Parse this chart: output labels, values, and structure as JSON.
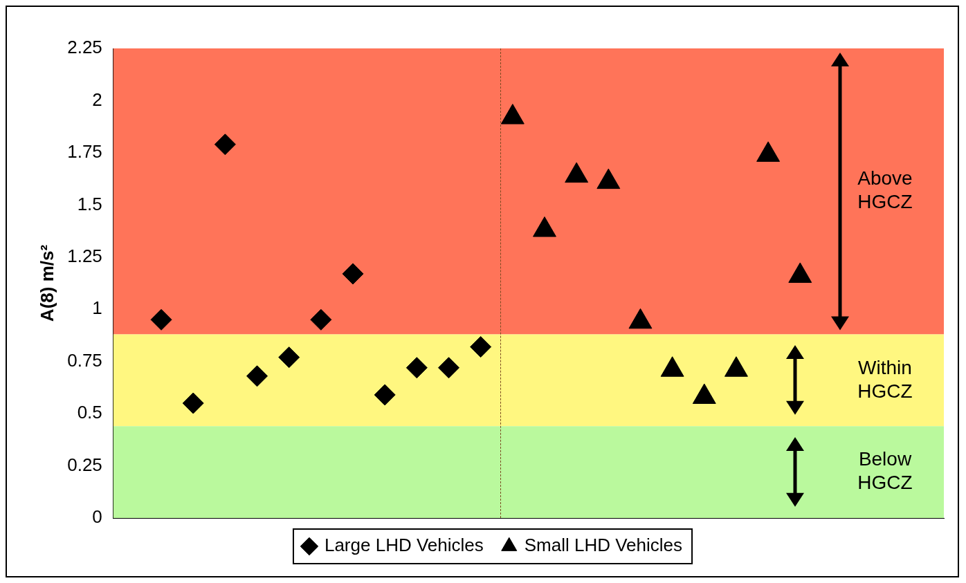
{
  "chart_data": {
    "type": "scatter",
    "ylabel": "A(8) m/s²",
    "categories": [
      null,
      null,
      null,
      null,
      null,
      null,
      null,
      null,
      null,
      null,
      null,
      null,
      null,
      null,
      null,
      null,
      null,
      null,
      null,
      null,
      null,
      null,
      null,
      null,
      null,
      null
    ],
    "ylim": [
      0,
      2.25
    ],
    "yticks": [
      0,
      0.25,
      0.5,
      0.75,
      1,
      1.25,
      1.5,
      1.75,
      2,
      2.25
    ],
    "tick_labels": "y",
    "grid": false,
    "legend": "bottom",
    "series": [
      {
        "name": "Large LHD Vehicles",
        "color": "#000000",
        "marker": "diamond",
        "values": [
          null,
          0.95,
          0.55,
          1.79,
          0.68,
          0.77,
          0.95,
          1.17,
          0.59,
          0.72,
          0.72,
          0.82,
          null,
          null,
          null,
          null,
          null,
          null,
          null,
          null,
          null,
          null,
          null,
          null,
          null,
          null
        ]
      },
      {
        "name": "Small LHD Vehicles",
        "color": "#000000",
        "marker": "triangle",
        "values": [
          null,
          null,
          null,
          null,
          null,
          null,
          null,
          null,
          null,
          null,
          null,
          null,
          1.92,
          1.38,
          1.64,
          1.61,
          0.94,
          0.71,
          0.58,
          0.71,
          1.74,
          1.16,
          null,
          null,
          null,
          null
        ]
      }
    ],
    "bands": [
      {
        "axis": "y",
        "from": 0.88,
        "to": 2.25,
        "label": "Above HGCZ",
        "color": "#ff7459"
      },
      {
        "axis": "y",
        "from": 0.44,
        "to": 0.88,
        "label": "Within HGCZ",
        "color": "#fff780"
      },
      {
        "axis": "y",
        "from": 0,
        "to": 0.44,
        "label": "Below HGCZ",
        "color": "#baf99d"
      }
    ]
  }
}
